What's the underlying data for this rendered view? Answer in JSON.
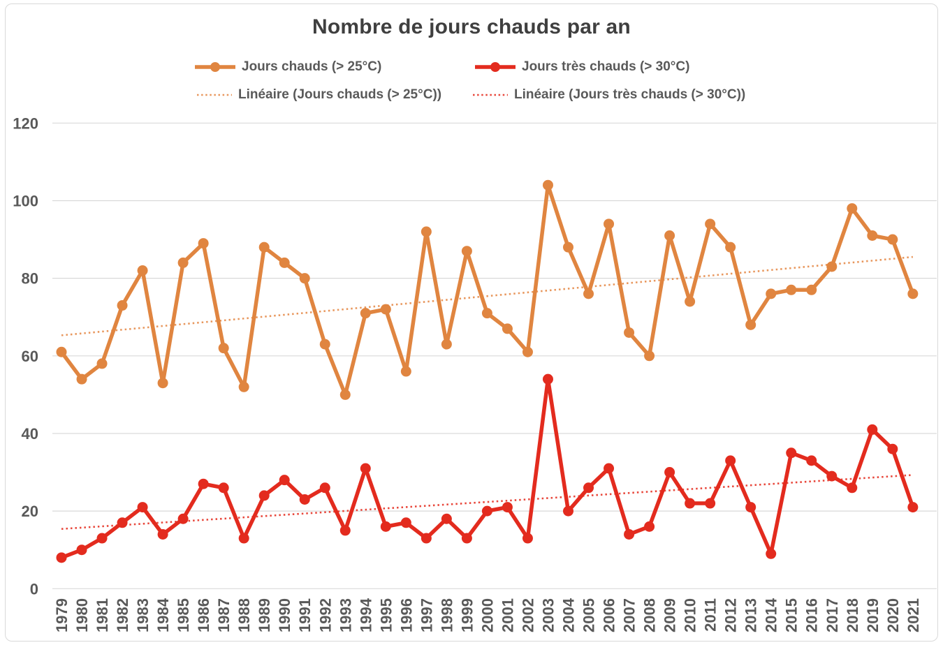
{
  "chart_data": {
    "type": "line",
    "title": "Nombre de jours chauds par an",
    "x": [
      1979,
      1980,
      1981,
      1982,
      1983,
      1984,
      1985,
      1986,
      1987,
      1988,
      1989,
      1990,
      1991,
      1992,
      1993,
      1994,
      1995,
      1996,
      1997,
      1998,
      1999,
      2000,
      2001,
      2002,
      2003,
      2004,
      2005,
      2006,
      2007,
      2008,
      2009,
      2010,
      2011,
      2012,
      2013,
      2014,
      2015,
      2016,
      2017,
      2018,
      2019,
      2020,
      2021
    ],
    "series": [
      {
        "name": "Jours chauds (> 25°C)",
        "color": "#E08540",
        "values": [
          61,
          54,
          58,
          73,
          82,
          53,
          84,
          89,
          62,
          52,
          88,
          84,
          80,
          63,
          50,
          71,
          72,
          56,
          92,
          63,
          87,
          71,
          67,
          61,
          104,
          88,
          76,
          94,
          66,
          60,
          91,
          74,
          94,
          88,
          68,
          76,
          77,
          77,
          83,
          98,
          91,
          90,
          76
        ]
      },
      {
        "name": "Jours très chauds (> 30°C)",
        "color": "#E32B1E",
        "values": [
          8,
          10,
          13,
          17,
          21,
          14,
          18,
          27,
          26,
          13,
          24,
          28,
          23,
          26,
          15,
          31,
          16,
          17,
          13,
          18,
          13,
          20,
          21,
          13,
          54,
          20,
          26,
          31,
          14,
          16,
          30,
          22,
          22,
          33,
          21,
          9,
          35,
          33,
          29,
          26,
          41,
          36,
          21
        ]
      }
    ],
    "trendlines": [
      {
        "name": "Linéaire (Jours chauds (> 25°C))",
        "color": "#E8975D",
        "start": 65.3,
        "end": 85.5
      },
      {
        "name": "Linéaire (Jours très chauds (> 30°C))",
        "color": "#E8473B",
        "start": 15.4,
        "end": 29.3
      }
    ],
    "ylim": [
      0,
      120
    ],
    "ytick_step": 20,
    "yticks": [
      "0",
      "20",
      "40",
      "60",
      "80",
      "100",
      "120"
    ],
    "grid": true,
    "legend_position": "top",
    "gridline_color": "#D9D9D9",
    "axis_text_color": "#595959"
  }
}
